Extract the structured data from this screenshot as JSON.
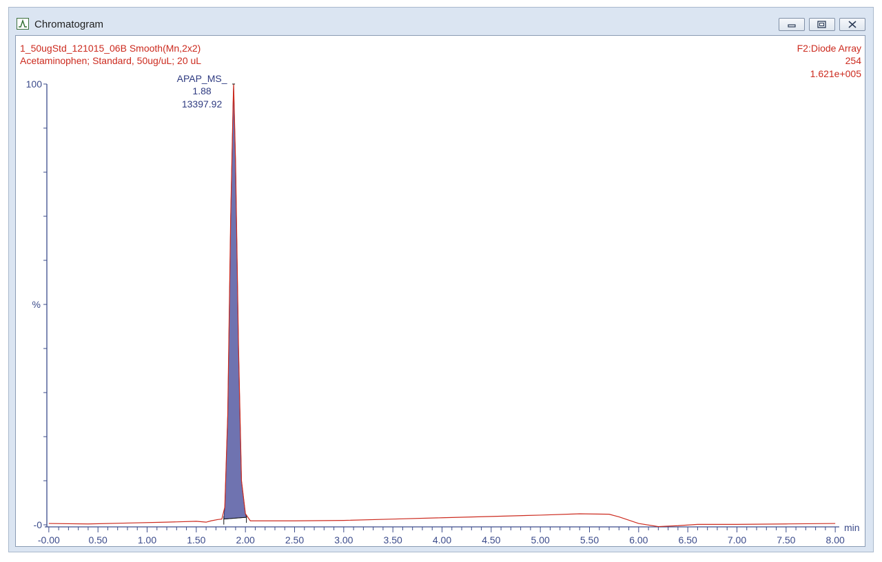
{
  "window": {
    "title": "Chromatogram",
    "icon": "chromatogram-peak-icon",
    "controls": [
      "minimize-icon",
      "restore-icon",
      "close-icon"
    ]
  },
  "header": {
    "left_line1": "1_50ugStd_121015_06B Smooth(Mn,2x2)",
    "left_line2": "Acetaminophen; Standard, 50ug/uL; 20 uL",
    "right_line1": "F2:Diode Array",
    "right_line2": "254",
    "right_line3": "1.621e+005"
  },
  "colors": {
    "trace": "#cc2a1e",
    "header_text": "#cc2a1e",
    "axis": "#3a4a8a",
    "peak_fill": "#6f73b0",
    "peak_label": "#2e3a80"
  },
  "chart_data": {
    "type": "line",
    "xlabel": "min",
    "ylabel": "%",
    "xlim": [
      -0.02,
      8.02
    ],
    "ylim": [
      0,
      100
    ],
    "x_ticks": [
      "-0.00",
      "0.50",
      "1.00",
      "1.50",
      "2.00",
      "2.50",
      "3.00",
      "3.50",
      "4.00",
      "4.50",
      "5.00",
      "5.50",
      "6.00",
      "6.50",
      "7.00",
      "7.50",
      "8.00"
    ],
    "y_ticks": [
      "-0",
      "%",
      "100"
    ],
    "series": [
      {
        "x": [
          0.0,
          0.4,
          0.8,
          1.2,
          1.5,
          1.6,
          1.65,
          1.72,
          1.76,
          1.79,
          1.82,
          1.85,
          1.875,
          1.88,
          1.9,
          1.93,
          1.96,
          2.0,
          2.05,
          2.5,
          3.0,
          3.5,
          4.0,
          4.5,
          5.0,
          5.4,
          5.7,
          5.8,
          6.0,
          6.2,
          6.4,
          6.6,
          7.0,
          7.5,
          8.0
        ],
        "y": [
          0.3,
          0.2,
          0.4,
          0.6,
          0.8,
          0.6,
          0.9,
          1.2,
          1.3,
          4.0,
          25.0,
          70.0,
          96.0,
          100.0,
          82.0,
          40.0,
          10.0,
          2.5,
          0.9,
          0.9,
          1.0,
          1.3,
          1.6,
          1.9,
          2.2,
          2.5,
          2.4,
          1.8,
          0.3,
          -0.4,
          -0.2,
          0.1,
          0.1,
          0.2,
          0.3
        ]
      }
    ],
    "peak": {
      "label": "APAP_MS_",
      "rt": "1.88",
      "area": "13397.92",
      "x": 1.88,
      "y": 100,
      "start_x": 1.78,
      "end_x": 2.01,
      "start_y": 1.3,
      "end_y": 1.7
    }
  }
}
